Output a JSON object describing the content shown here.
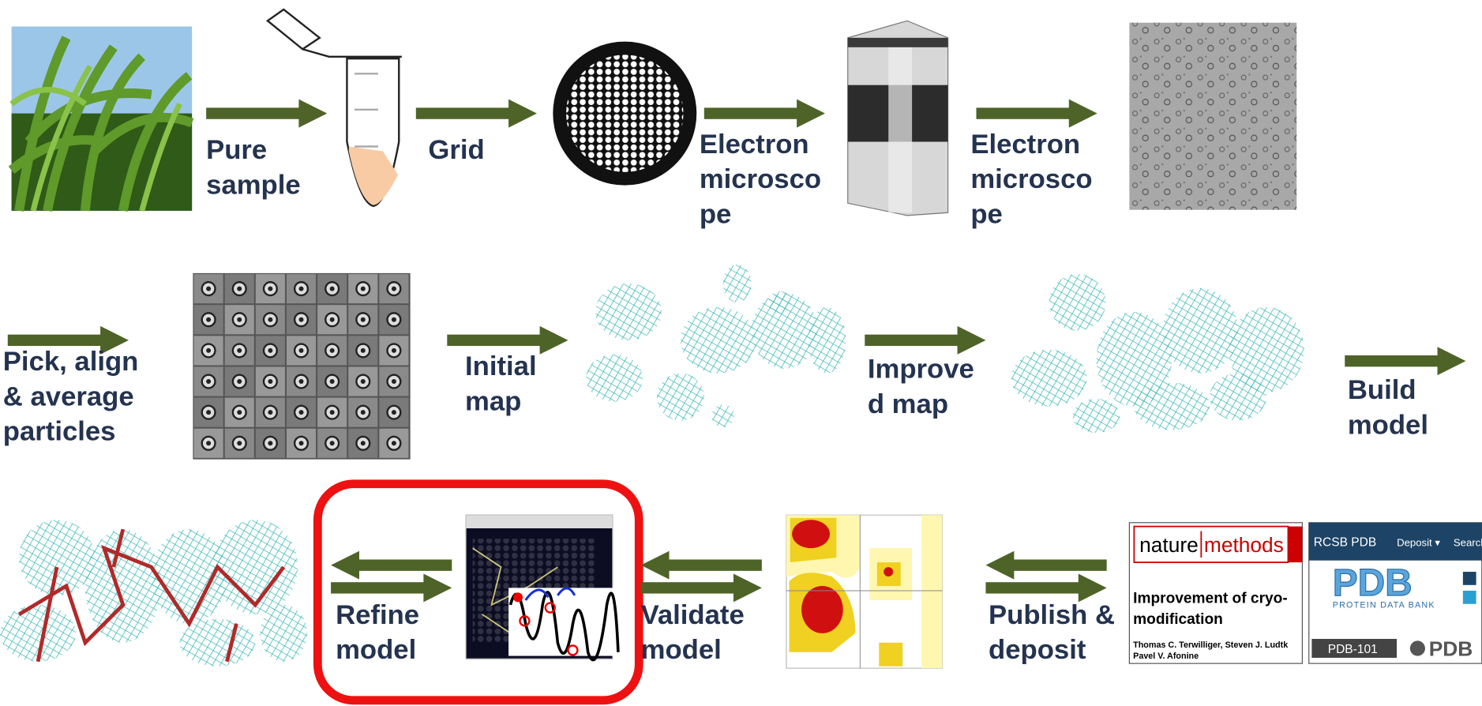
{
  "steps": [
    {
      "label_lines": [
        "Pure",
        "sample"
      ]
    },
    {
      "label_lines": [
        "Grid"
      ]
    },
    {
      "label_lines": [
        "Electron",
        "microsco",
        "pe"
      ]
    },
    {
      "label_lines": [
        "Electron",
        "microsco",
        "pe"
      ]
    },
    {
      "label_lines": [
        "Pick, align",
        "& average",
        "particles"
      ]
    },
    {
      "label_lines": [
        "Initial",
        "map"
      ]
    },
    {
      "label_lines": [
        "Improve",
        "d map"
      ]
    },
    {
      "label_lines": [
        "Build",
        "model"
      ]
    },
    {
      "label_lines": [
        "Refine",
        "model"
      ]
    },
    {
      "label_lines": [
        "Validate",
        "model"
      ]
    },
    {
      "label_lines": [
        "Publish &",
        "deposit"
      ]
    }
  ],
  "nature_paper": {
    "journal_left": "nature",
    "journal_right": "methods",
    "title_lines": [
      "Improvement of cryo-",
      "modification"
    ],
    "author_lines": [
      "Thomas C. Terwilliger, Steven J. Ludtk",
      "Pavel V. Afonine"
    ]
  },
  "pdb": {
    "nav": [
      "RCSB PDB",
      "Deposit ▾",
      "Search"
    ],
    "logo": "PDB",
    "subtitle": "PROTEIN DATA BANK",
    "links": [
      "PDB-101",
      "PDB"
    ]
  }
}
